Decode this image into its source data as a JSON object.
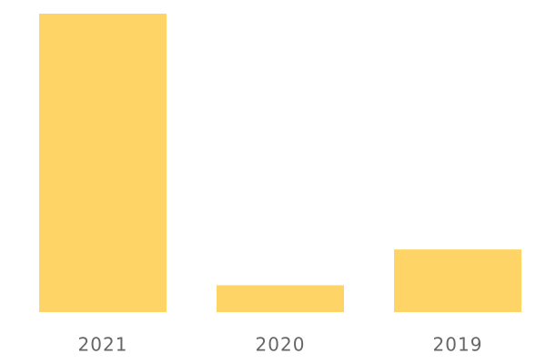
{
  "chart_data": {
    "type": "bar",
    "categories": [
      "2021",
      "2020",
      "2019"
    ],
    "values": [
      100,
      9,
      21
    ],
    "color": "#fed466"
  }
}
